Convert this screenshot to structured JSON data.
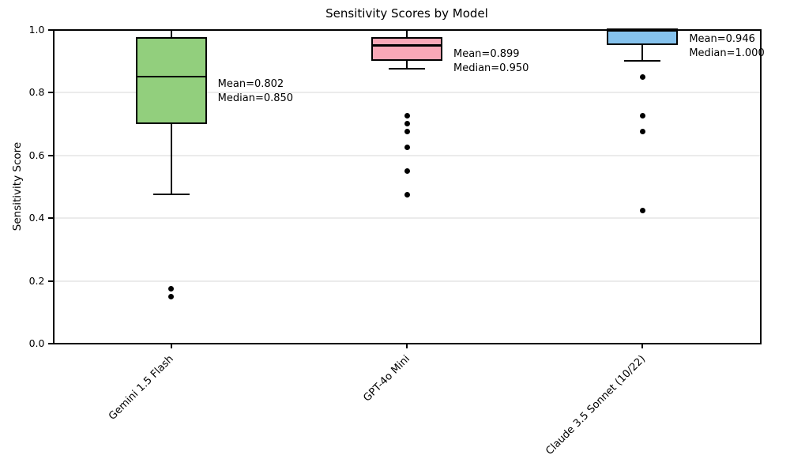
{
  "chart_data": {
    "type": "box",
    "title": "Sensitivity Scores by Model",
    "xlabel": "",
    "ylabel": "Sensitivity Score",
    "ylim": [
      0.0,
      1.0
    ],
    "yticks": [
      0.0,
      0.2,
      0.4,
      0.6,
      0.8,
      1.0
    ],
    "grid": "horizontal",
    "legend": "none",
    "edge_color": "#000000",
    "categories": [
      "Gemini 1.5 Flash",
      "GPT-4o Mini",
      "Claude 3.5 Sonnet (10/22)"
    ],
    "series": [
      {
        "name": "Gemini 1.5 Flash",
        "fill": "#92cf7d",
        "whisker_low": 0.475,
        "q1": 0.7,
        "median": 0.85,
        "q3": 0.975,
        "whisker_high": 1.0,
        "mean": 0.802,
        "outliers": [
          0.175,
          0.15
        ],
        "mean_label": "Mean=0.802",
        "median_label": "Median=0.850"
      },
      {
        "name": "GPT-4o Mini",
        "fill": "#f9a8b7",
        "whisker_low": 0.875,
        "q1": 0.9,
        "median": 0.95,
        "q3": 0.975,
        "whisker_high": 1.0,
        "mean": 0.899,
        "outliers": [
          0.725,
          0.7,
          0.675,
          0.625,
          0.55,
          0.475
        ],
        "mean_label": "Mean=0.899",
        "median_label": "Median=0.950"
      },
      {
        "name": "Claude 3.5 Sonnet (10/22)",
        "fill": "#85c2ed",
        "whisker_low": 0.9,
        "q1": 0.95,
        "median": 1.0,
        "q3": 1.0,
        "whisker_high": 1.0,
        "mean": 0.946,
        "outliers": [
          0.85,
          0.725,
          0.675,
          0.425
        ],
        "mean_label": "Mean=0.946",
        "median_label": "Median=1.000"
      }
    ]
  }
}
